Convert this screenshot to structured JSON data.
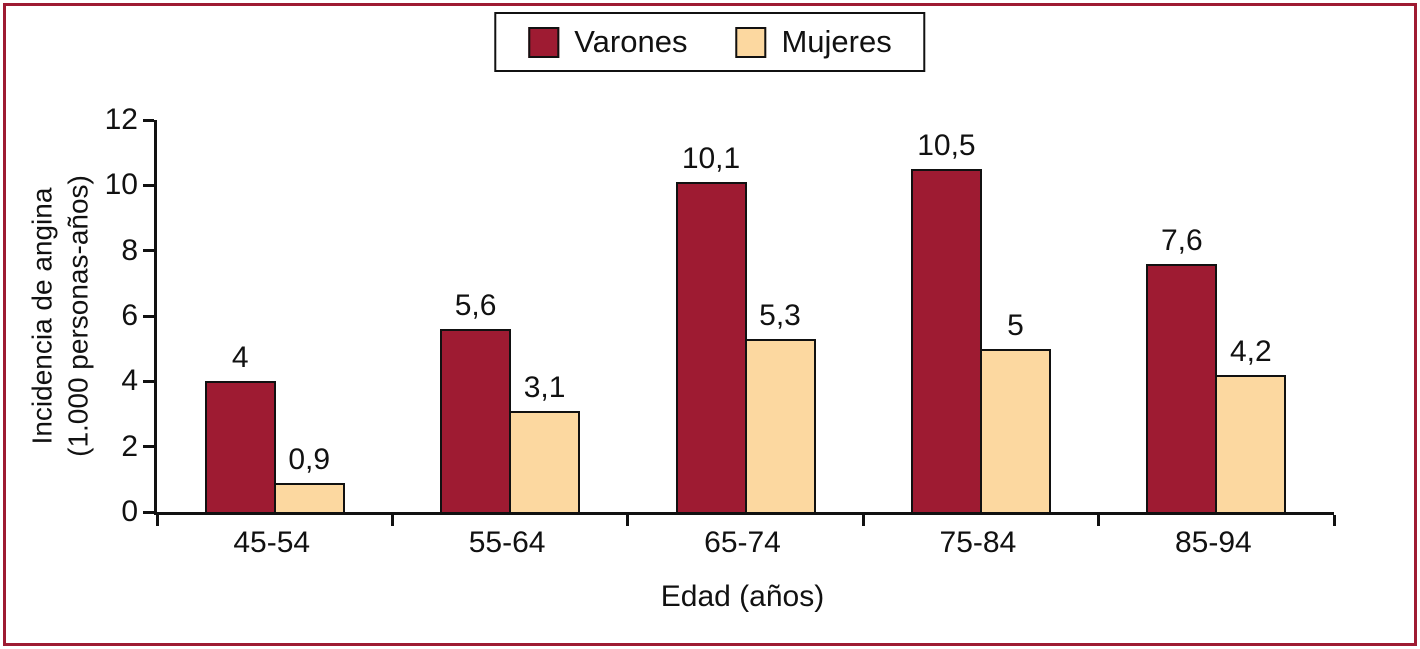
{
  "colors": {
    "frame_border": "#9e1b32",
    "varones": "#9e1b32",
    "mujeres": "#fcd8a0",
    "axis": "#111111"
  },
  "legend": {
    "items": [
      "Varones",
      "Mujeres"
    ]
  },
  "chart_data": {
    "type": "bar",
    "title": "",
    "categories": [
      "45-54",
      "55-64",
      "65-74",
      "75-84",
      "85-94"
    ],
    "series": [
      {
        "name": "Varones",
        "color": "#9e1b32",
        "values": [
          4,
          5.6,
          10.1,
          10.5,
          7.6
        ],
        "labels": [
          "4",
          "5,6",
          "10,1",
          "10,5",
          "7,6"
        ]
      },
      {
        "name": "Mujeres",
        "color": "#fcd8a0",
        "values": [
          0.9,
          3.1,
          5.3,
          5,
          4.2
        ],
        "labels": [
          "0,9",
          "3,1",
          "5,3",
          "5",
          "4,2"
        ]
      }
    ],
    "xlabel": "Edad (años)",
    "ylabel": "Incidencia de angina\n(1.000 personas-años)",
    "ylim": [
      0,
      12
    ],
    "yticks": [
      0,
      2,
      4,
      6,
      8,
      10,
      12
    ],
    "legend_position": "top-center",
    "grid": false
  }
}
